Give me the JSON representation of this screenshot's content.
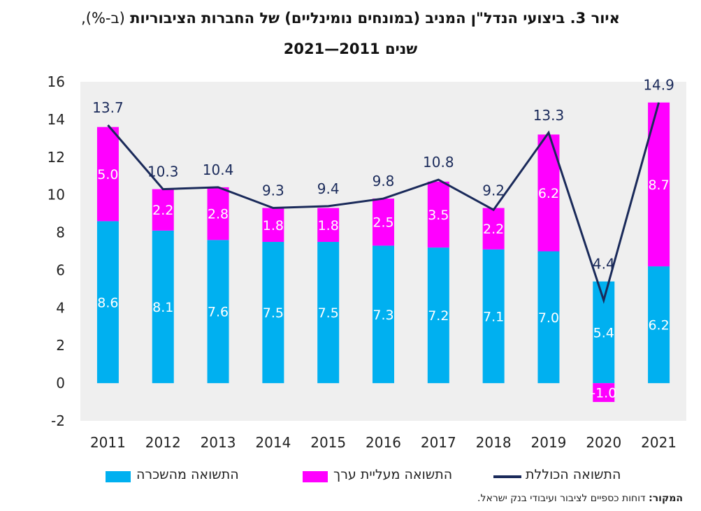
{
  "title": {
    "line1_main": "איור 3. ביצועי הנדל\"ן המניב (במונחים נומינליים) של החברות הציבוריות",
    "line1_unit": "(ב-%),",
    "line2": "שנים 2011—2021"
  },
  "legend": {
    "rent_label": "התשואה מהשכרה",
    "appreciation_label": "התשואה מעליית ערך",
    "total_label": "התשואה הכוללת"
  },
  "source": {
    "label": "המקור:",
    "text": "דוחות כספיים לציבור ועיבודי בנק ישראל."
  },
  "colors": {
    "rent": "#00b0f0",
    "appreciation": "#ff00ff",
    "total": "#1a2a5a",
    "plot_bg": "#efefef"
  },
  "chart_data": {
    "type": "bar",
    "stacked": true,
    "categories": [
      "2011",
      "2012",
      "2013",
      "2014",
      "2015",
      "2016",
      "2017",
      "2018",
      "2019",
      "2020",
      "2021"
    ],
    "series": [
      {
        "name": "התשואה מהשכרה",
        "type": "bar",
        "values": [
          8.6,
          8.1,
          7.6,
          7.5,
          7.5,
          7.3,
          7.2,
          7.1,
          7.0,
          5.4,
          6.2
        ],
        "labels": [
          "8.6",
          "8.1",
          "7.6",
          "7.5",
          "7.5",
          "7.3",
          "7.2",
          "7.1",
          "7.0",
          "5.4",
          "6.2"
        ]
      },
      {
        "name": "התשואה מעליית ערך",
        "type": "bar",
        "values": [
          5.0,
          2.2,
          2.8,
          1.8,
          1.8,
          2.5,
          3.5,
          2.2,
          6.2,
          -1.0,
          8.7
        ],
        "labels": [
          "5.0",
          "2.2",
          "2.8",
          "1.8",
          "1.8",
          "2.5",
          "3.5",
          "2.2",
          "6.2",
          "-1.0",
          "8.7"
        ]
      },
      {
        "name": "התשואה הכוללת",
        "type": "line",
        "values": [
          13.7,
          10.3,
          10.4,
          9.3,
          9.4,
          9.8,
          10.8,
          9.2,
          13.3,
          4.4,
          14.9
        ],
        "labels": [
          "13.7",
          "10.3",
          "10.4",
          "9.3",
          "9.4",
          "9.8",
          "10.8",
          "9.2",
          "13.3",
          "4.4",
          "14.9"
        ]
      }
    ],
    "ylim": [
      -2,
      16
    ],
    "yticks": [
      "-2",
      "0",
      "2",
      "4",
      "6",
      "8",
      "10",
      "12",
      "14",
      "16"
    ],
    "grid": false,
    "legend_position": "bottom"
  }
}
